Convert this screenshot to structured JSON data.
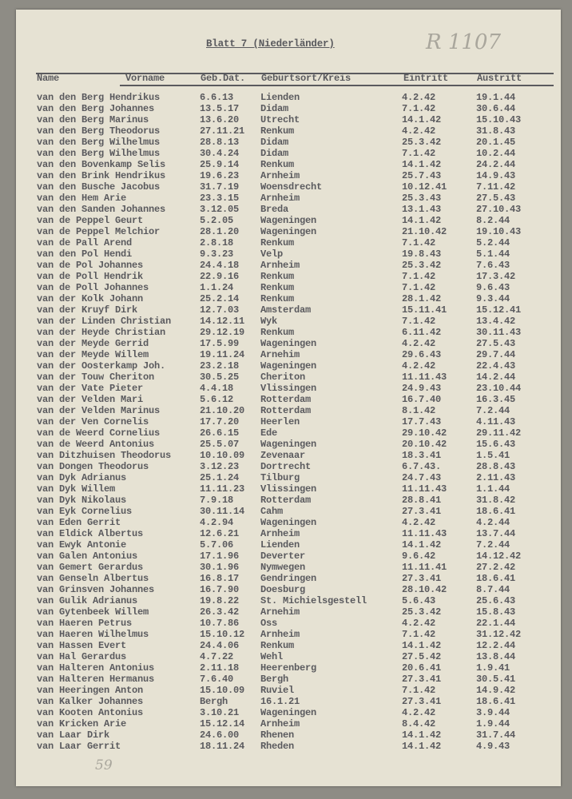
{
  "title": "Blatt 7 (Niederländer)",
  "handwritten_reference": "R 1107",
  "handwritten_count": "59",
  "columns": [
    "Name",
    "Vorname",
    "Geb.Dat.",
    "Geburtsort/Kreis",
    "Eintritt",
    "Austritt"
  ],
  "rows": [
    [
      "van den Berg",
      "Hendrikus",
      "6.6.13",
      "Lienden",
      "4.2.42",
      "19.1.44"
    ],
    [
      "van den Berg",
      "Johannes",
      "13.5.17",
      "Didam",
      "7.1.42",
      "30.6.44"
    ],
    [
      "van den Berg",
      "Marinus",
      "13.6.20",
      "Utrecht",
      "14.1.42",
      "15.10.43"
    ],
    [
      "van den Berg",
      "Theodorus",
      "27.11.21",
      "Renkum",
      "4.2.42",
      "31.8.43"
    ],
    [
      "van den Berg",
      "Wilhelmus",
      "28.8.13",
      "Didam",
      "25.3.42",
      "20.1.45"
    ],
    [
      "van den Berg",
      "Wilhelmus",
      "30.4.24",
      "Didam",
      "7.1.42",
      "10.2.44"
    ],
    [
      "van den Bovenkamp",
      "Selis",
      "25.9.14",
      "Renkum",
      "14.1.42",
      "24.2.44"
    ],
    [
      "van den Brink",
      "Hendrikus",
      "19.6.23",
      "Arnheim",
      "25.7.43",
      "14.9.43"
    ],
    [
      "van den Busche",
      "Jacobus",
      "31.7.19",
      "Woensdrecht",
      "10.12.41",
      "7.11.42"
    ],
    [
      "van den Hem",
      "Arie",
      "23.3.15",
      "Arnheim",
      "25.3.43",
      "27.5.43"
    ],
    [
      "van den Sanden",
      "Johannes",
      "3.12.05",
      "Breda",
      "13.1.43",
      "27.10.43"
    ],
    [
      "van de Peppel",
      "Geurt",
      "5.2.05",
      "Wageningen",
      "14.1.42",
      "8.2.44"
    ],
    [
      "van de Peppel",
      "Melchior",
      "28.1.20",
      "Wageningen",
      "21.10.42",
      "19.10.43"
    ],
    [
      "van de Pall",
      "Arend",
      "2.8.18",
      "Renkum",
      "7.1.42",
      "5.2.44"
    ],
    [
      "van den Pol",
      "Hendi",
      "9.3.23",
      "Velp",
      "19.8.43",
      "5.1.44"
    ],
    [
      "van de Pol",
      "Johannes",
      "24.4.18",
      "Arnheim",
      "25.3.42",
      "7.6.43"
    ],
    [
      "van de Poll",
      "Hendrik",
      "22.9.16",
      "Renkum",
      "7.1.42",
      "17.3.42"
    ],
    [
      "van de Poll",
      "Johannes",
      "1.1.24",
      "Renkum",
      "7.1.42",
      "9.6.43"
    ],
    [
      "van der Kolk",
      "Johann",
      "25.2.14",
      "Renkum",
      "28.1.42",
      "9.3.44"
    ],
    [
      "van der Kruyf",
      "Dirk",
      "12.7.03",
      "Amsterdam",
      "15.11.41",
      "15.12.41"
    ],
    [
      "van der Linden",
      "Christian",
      "14.12.11",
      "Wyk",
      "7.1.42",
      "13.4.42"
    ],
    [
      "van der Heyde",
      "Christian",
      "29.12.19",
      "Renkum",
      "6.11.42",
      "30.11.43"
    ],
    [
      "van der Meyde",
      "Gerrid",
      "17.5.99",
      "Wageningen",
      "4.2.42",
      "27.5.43"
    ],
    [
      "van der Meyde",
      "Willem",
      "19.11.24",
      "Arnehim",
      "29.6.43",
      "29.7.44"
    ],
    [
      "van der Oosterkamp",
      "Joh.",
      "23.2.18",
      "Wageningen",
      "4.2.42",
      "22.4.43"
    ],
    [
      "van der Touw",
      "Cheriton",
      "30.5.25",
      "Cheriton",
      "11.11.43",
      "14.2.44"
    ],
    [
      "van der Vate",
      "Pieter",
      "4.4.18",
      "Vlissingen",
      "24.9.43",
      "23.10.44"
    ],
    [
      "van der Velden",
      "Mari",
      "5.6.12",
      "Rotterdam",
      "16.7.40",
      "16.3.45"
    ],
    [
      "van der Velden",
      "Marinus",
      "21.10.20",
      "Rotterdam",
      "8.1.42",
      "7.2.44"
    ],
    [
      "van der Ven",
      "Cornelis",
      "17.7.20",
      "Heerlen",
      "17.7.43",
      "4.11.43"
    ],
    [
      "van de Weerd",
      "Cornelius",
      "26.6.15",
      "Ede",
      "29.10.42",
      "29.11.42"
    ],
    [
      "van de Weerd",
      "Antonius",
      "25.5.07",
      "Wageningen",
      "20.10.42",
      "15.6.43"
    ],
    [
      "van Ditzhuisen",
      "Theodorus",
      "10.10.09",
      "Zevenaar",
      "18.3.41",
      "1.5.41"
    ],
    [
      "van Dongen",
      "Theodorus",
      "3.12.23",
      "Dortrecht",
      "6.7.43.",
      "28.8.43"
    ],
    [
      "van Dyk",
      "Adrianus",
      "25.1.24",
      "Tilburg",
      "24.7.43",
      "2.11.43"
    ],
    [
      "van Dyk",
      "Willem",
      "11.11.23",
      "Vlissingen",
      "11.11.43",
      "1.1.44"
    ],
    [
      "van Dyk",
      "Nikolaus",
      "7.9.18",
      "Rotterdam",
      "28.8.41",
      "31.8.42"
    ],
    [
      "van Eyk",
      "Cornelius",
      "30.11.14",
      "Cahm",
      "27.3.41",
      "18.6.41"
    ],
    [
      "van Eden",
      "Gerrit",
      "4.2.94",
      "Wageningen",
      "4.2.42",
      "4.2.44"
    ],
    [
      "van Eldick",
      "Albertus",
      "12.6.21",
      "Arnheim",
      "11.11.43",
      "13.7.44"
    ],
    [
      "van Ewyk",
      "Antonie",
      "5.7.06",
      "Lienden",
      "14.1.42",
      "7.2.44"
    ],
    [
      "van Galen",
      "Antonius",
      "17.1.96",
      "Deverter",
      "9.6.42",
      "14.12.42"
    ],
    [
      "van Gemert",
      "Gerardus",
      "30.1.96",
      "Nymwegen",
      "11.11.41",
      "27.2.42"
    ],
    [
      "van Genseln",
      "Albertus",
      "16.8.17",
      "Gendringen",
      "27.3.41",
      "18.6.41"
    ],
    [
      "van Grinsven",
      "Johannes",
      "16.7.90",
      "Doesburg",
      "28.10.42",
      "8.7.44"
    ],
    [
      "van Gulik",
      "Adrianus",
      "19.8.22",
      "St. Michielsgestell",
      "5.6.43",
      "25.6.43"
    ],
    [
      "van Gytenbeek",
      "Willem",
      "26.3.42",
      "Arnehim",
      "25.3.42",
      "15.8.43"
    ],
    [
      "van Haeren",
      "Petrus",
      "10.7.86",
      "Oss",
      "4.2.42",
      "22.1.44"
    ],
    [
      "van Haeren",
      "Wilhelmus",
      "15.10.12",
      "Arnheim",
      "7.1.42",
      "31.12.42"
    ],
    [
      "van Hassen",
      "Evert",
      "24.4.06",
      "Renkum",
      "14.1.42",
      "12.2.44"
    ],
    [
      "van Hal",
      "Gerardus",
      "4.7.22",
      "Wehl",
      "27.5.42",
      "13.8.44"
    ],
    [
      "van Halteren",
      "Antonius",
      "2.11.18",
      "Heerenberg",
      "20.6.41",
      "1.9.41"
    ],
    [
      "van Halteren",
      "Hermanus",
      "7.6.40",
      "Bergh",
      "27.3.41",
      "30.5.41"
    ],
    [
      "van Heeringen",
      "Anton",
      "15.10.09",
      "Ruviel",
      "7.1.42",
      "14.9.42"
    ],
    [
      "van Kalker",
      "Johannes",
      "Bergh",
      "16.1.21",
      "27.3.41",
      "18.6.41"
    ],
    [
      "van Kooten",
      "Antonius",
      "3.10.21",
      "Wageningen",
      "4.2.42",
      "3.9.44"
    ],
    [
      "van Kricken",
      "Arie",
      "15.12.14",
      "Arnheim",
      "8.4.42",
      "1.9.44"
    ],
    [
      "van Laar",
      "Dirk",
      "24.6.00",
      "Rhenen",
      "14.1.42",
      "31.7.44"
    ],
    [
      "van Laar",
      "Gerrit",
      "18.11.24",
      "Rheden",
      "14.1.42",
      "4.9.43"
    ]
  ]
}
